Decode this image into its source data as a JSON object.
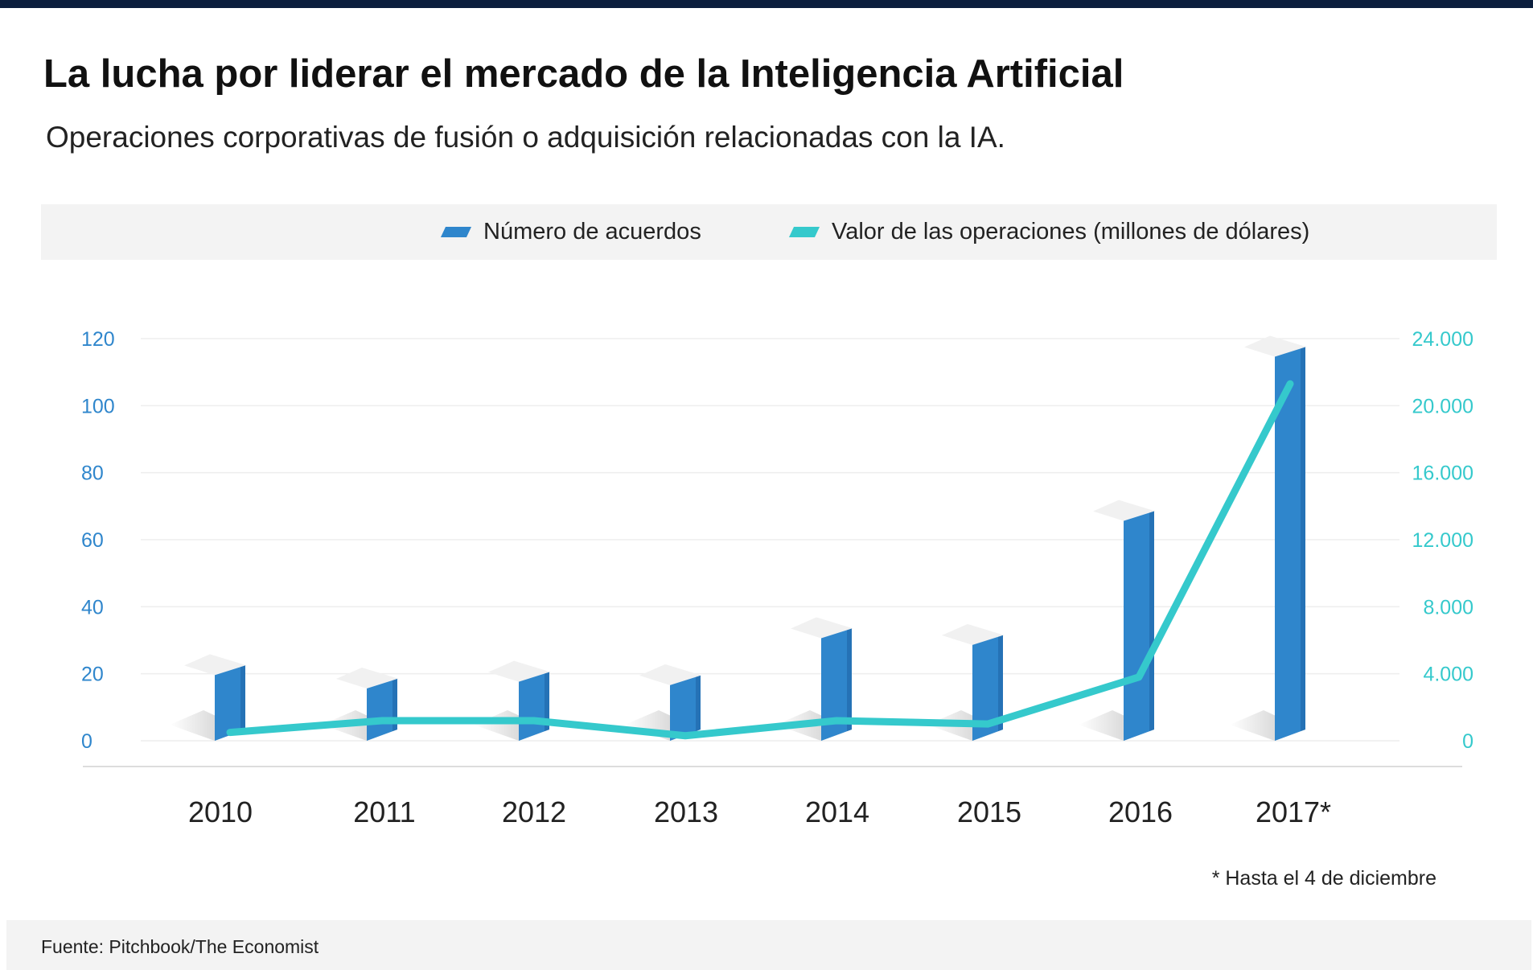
{
  "title": "La lucha por liderar el mercado de la Inteligencia Artificial",
  "subtitle": "Operaciones corporativas de fusión o adquisición relacionadas con la IA.",
  "footnote": "* Hasta el 4 de diciembre",
  "source": "Fuente: Pitchbook/The Economist",
  "colors": {
    "bar_front": "#2f86cc",
    "bar_side": "#1f66a6",
    "line": "#35c9cc",
    "left_axis": "#2f86cc",
    "right_axis": "#35c9cc",
    "top_bar": "#0b1e3d"
  },
  "chart_data": {
    "type": "bar",
    "title": "La lucha por liderar el mercado de la Inteligencia Artificial",
    "categories": [
      "2010",
      "2011",
      "2012",
      "2013",
      "2014",
      "2015",
      "2016",
      "2017*"
    ],
    "series": [
      {
        "name": "Número de acuerdos",
        "type": "bar",
        "axis": "left",
        "values": [
          22,
          18,
          20,
          19,
          33,
          31,
          68,
          117
        ]
      },
      {
        "name": "Valor de las operaciones (millones de dólares)",
        "type": "line",
        "axis": "right",
        "values": [
          500,
          1200,
          1200,
          300,
          1200,
          1000,
          3800,
          21300
        ]
      }
    ],
    "left_axis": {
      "range": [
        0,
        120
      ],
      "ticks": [
        "0",
        "20",
        "40",
        "60",
        "80",
        "100",
        "120"
      ]
    },
    "right_axis": {
      "range": [
        0,
        24000
      ],
      "ticks": [
        "0",
        "4.000",
        "8.000",
        "12.000",
        "16.000",
        "20.000",
        "24.000"
      ]
    },
    "grid": true,
    "legend_position": "top"
  }
}
